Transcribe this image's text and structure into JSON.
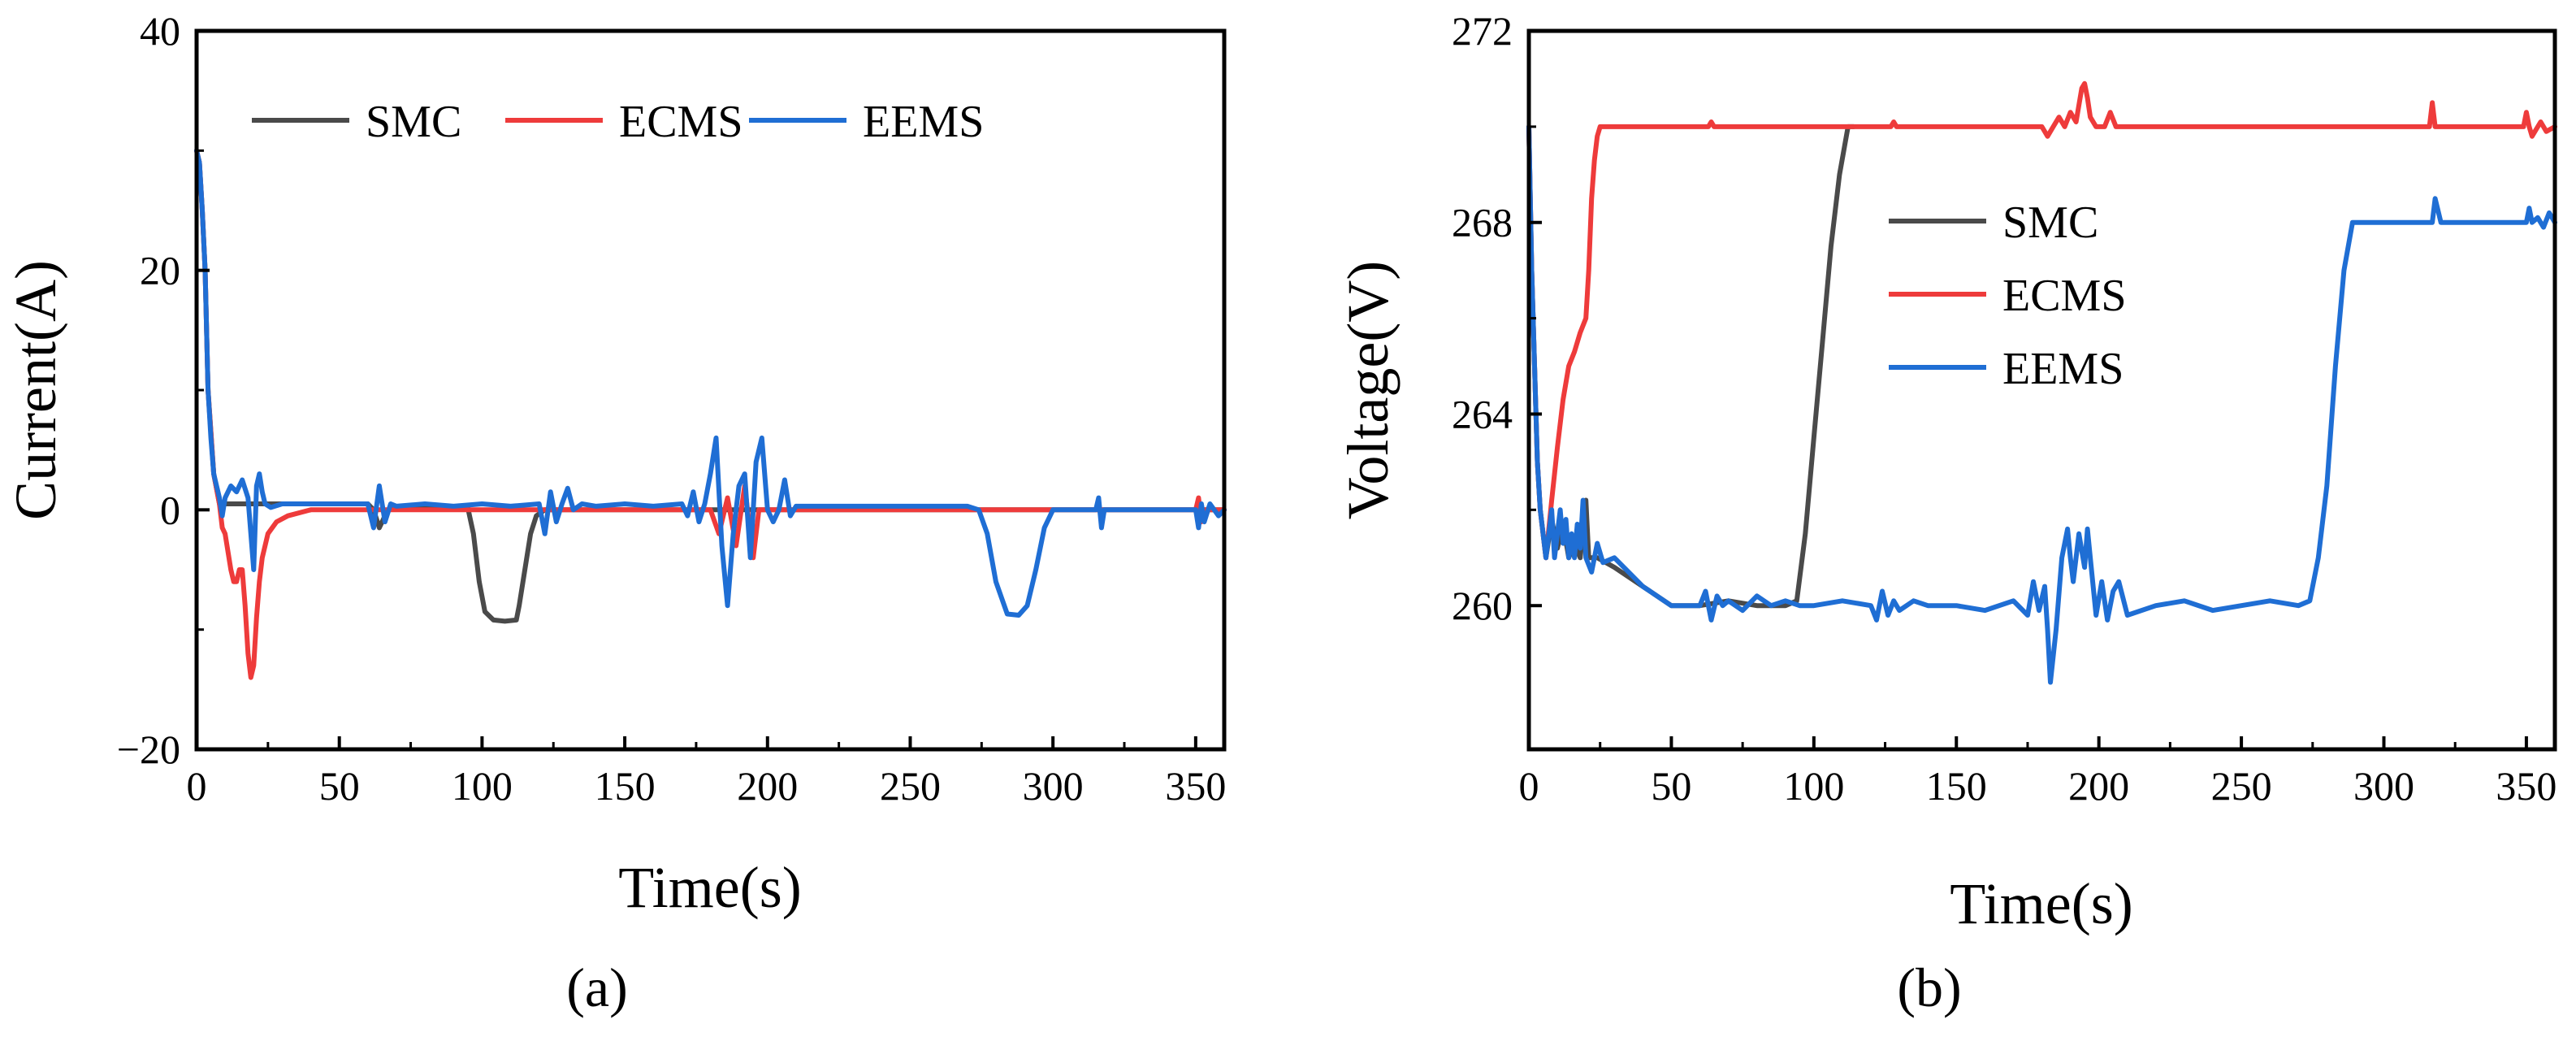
{
  "figure": {
    "panel_a_label": "(a)",
    "panel_b_label": "(b)"
  },
  "colors": {
    "SMC": "#4a4a4a",
    "ECMS": "#ee3b3b",
    "EEMS": "#1f6ed4"
  },
  "chart_data": [
    {
      "id": "a",
      "type": "line",
      "title": "",
      "xlabel": "Time(s)",
      "ylabel": "Current(A)",
      "xlim": [
        0,
        360
      ],
      "ylim": [
        -20,
        40
      ],
      "xticks": [
        0,
        50,
        100,
        150,
        200,
        250,
        300,
        350
      ],
      "yticks": [
        -20,
        0,
        20,
        40
      ],
      "ytick_labels": [
        "−20",
        "0",
        "20",
        "40"
      ],
      "legend": {
        "placement": "top",
        "layout": "horizontal"
      },
      "series": [
        {
          "name": "SMC",
          "color": "#4a4a4a",
          "x": [
            0,
            1,
            2,
            3,
            4,
            6,
            8,
            60,
            62,
            64,
            66,
            68,
            95,
            97,
            99,
            101,
            104,
            108,
            112,
            113,
            115,
            117,
            119,
            122,
            125,
            360
          ],
          "y": [
            30,
            29,
            25,
            20,
            10,
            3,
            0.5,
            0.5,
            0,
            -1.5,
            -0.5,
            0.2,
            0.2,
            -2,
            -6,
            -8.5,
            -9.2,
            -9.3,
            -9.2,
            -8,
            -5,
            -2,
            -0.5,
            0,
            0,
            0
          ]
        },
        {
          "name": "ECMS",
          "color": "#ee3b3b",
          "x": [
            0,
            1,
            2,
            3,
            4,
            6,
            8,
            9,
            10,
            12,
            13,
            14,
            15,
            16,
            17,
            18,
            19,
            20,
            21,
            22,
            23,
            25,
            28,
            32,
            40,
            60,
            180,
            183,
            186,
            189,
            192,
            195,
            197,
            200,
            205,
            350,
            351,
            352,
            353,
            360
          ],
          "y": [
            30,
            29,
            25,
            20,
            10,
            3,
            0.5,
            -1.5,
            -2,
            -5,
            -6,
            -6,
            -5,
            -5,
            -8,
            -12,
            -14,
            -13,
            -9,
            -6,
            -4,
            -2,
            -1,
            -0.5,
            0,
            0,
            0,
            -2,
            1,
            -3,
            2,
            -4,
            0,
            0,
            0,
            0,
            1,
            -1,
            0,
            0
          ]
        },
        {
          "name": "EEMS",
          "color": "#1f6ed4",
          "x": [
            0,
            1,
            2,
            3,
            4,
            5,
            6,
            7,
            8,
            9,
            10,
            12,
            14,
            16,
            18,
            20,
            21,
            22,
            23,
            24,
            26,
            30,
            40,
            60,
            62,
            64,
            66,
            68,
            70,
            80,
            90,
            100,
            110,
            120,
            122,
            124,
            126,
            128,
            130,
            132,
            135,
            140,
            150,
            160,
            170,
            172,
            174,
            176,
            178,
            180,
            182,
            184,
            186,
            188,
            190,
            192,
            194,
            196,
            198,
            200,
            202,
            204,
            206,
            208,
            210,
            220,
            230,
            240,
            250,
            260,
            270,
            274,
            277,
            280,
            284,
            288,
            291,
            294,
            297,
            300,
            305,
            310,
            315,
            316,
            317,
            318,
            320,
            330,
            340,
            350,
            351,
            352,
            353,
            355,
            358,
            360
          ],
          "y": [
            30,
            29,
            25,
            20,
            10,
            6,
            3,
            2,
            1,
            -0.5,
            1,
            2,
            1.5,
            2.5,
            1,
            -5,
            2,
            3,
            1.5,
            0.5,
            0.2,
            0.5,
            0.5,
            0.5,
            -1.5,
            2,
            -1,
            0.5,
            0.3,
            0.5,
            0.3,
            0.5,
            0.3,
            0.5,
            -2,
            1.5,
            -1,
            0.5,
            1.8,
            0,
            0.5,
            0.3,
            0.5,
            0.3,
            0.5,
            -0.5,
            1.5,
            -1,
            0.5,
            3,
            6,
            -3,
            -8,
            -2,
            2,
            3,
            -4,
            4,
            6,
            0,
            -1,
            0,
            2.5,
            -0.5,
            0.3,
            0.3,
            0.3,
            0.3,
            0.3,
            0.3,
            0.3,
            0,
            -2,
            -6,
            -8.7,
            -8.8,
            -8,
            -5,
            -1.5,
            0,
            0,
            0,
            0,
            1,
            -1.5,
            0,
            0,
            0,
            0,
            0,
            -1.5,
            0.5,
            -1,
            0.5,
            -0.5,
            0
          ]
        }
      ]
    },
    {
      "id": "b",
      "type": "line",
      "title": "",
      "xlabel": "Time(s)",
      "ylabel": "Voltage(V)",
      "xlim": [
        0,
        360
      ],
      "ylim": [
        257,
        272
      ],
      "xticks": [
        0,
        50,
        100,
        150,
        200,
        250,
        300,
        350
      ],
      "yticks": [
        260,
        264,
        268,
        272
      ],
      "ytick_labels": [
        "260",
        "264",
        "268",
        "272"
      ],
      "legend": {
        "placement": "center",
        "layout": "vertical"
      },
      "series": [
        {
          "name": "SMC",
          "color": "#4a4a4a",
          "x": [
            0,
            1,
            2,
            3,
            4,
            5,
            6,
            8,
            10,
            12,
            14,
            16,
            18,
            20,
            21,
            22,
            24,
            30,
            40,
            50,
            55,
            60,
            70,
            80,
            90,
            94,
            97,
            100,
            103,
            106,
            109,
            112,
            113,
            114
          ],
          "y": [
            270,
            267,
            265,
            263,
            262,
            261.5,
            261,
            261.8,
            261.2,
            261.7,
            261,
            261.3,
            261,
            262.2,
            261,
            261,
            261,
            260.8,
            260.4,
            260,
            260,
            260,
            260.1,
            260,
            260,
            260.1,
            261.5,
            263.5,
            265.5,
            267.5,
            269,
            270,
            270,
            270
          ]
        },
        {
          "name": "ECMS",
          "color": "#ee3b3b",
          "x": [
            0,
            1,
            2,
            3,
            4,
            5,
            6,
            8,
            10,
            12,
            14,
            16,
            18,
            20,
            21,
            22,
            23,
            24,
            25,
            26,
            30,
            60,
            63,
            64,
            65,
            100,
            127,
            128,
            129,
            180,
            182,
            184,
            186,
            188,
            190,
            192,
            194,
            195,
            196,
            197,
            199,
            202,
            204,
            206,
            208,
            300,
            316,
            317,
            318,
            320,
            340,
            349,
            350,
            351,
            352,
            355,
            357,
            360
          ],
          "y": [
            270,
            267,
            265,
            263,
            262,
            261.5,
            261,
            262.2,
            263.3,
            264.3,
            265,
            265.3,
            265.7,
            266,
            267,
            268.5,
            269.3,
            269.8,
            270,
            270,
            270,
            270,
            270,
            270.1,
            270,
            270,
            270,
            270.1,
            270,
            270,
            269.8,
            270,
            270.2,
            270,
            270.3,
            270.1,
            270.8,
            270.9,
            270.6,
            270.2,
            270,
            270,
            270.3,
            270,
            270,
            270,
            270,
            270.5,
            270,
            270,
            270,
            270,
            270.3,
            270,
            269.8,
            270.1,
            269.9,
            270
          ]
        },
        {
          "name": "EEMS",
          "color": "#1f6ed4",
          "x": [
            0,
            1,
            2,
            3,
            4,
            5,
            6,
            7,
            8,
            9,
            10,
            11,
            12,
            13,
            14,
            15,
            16,
            17,
            18,
            19,
            20,
            22,
            24,
            26,
            30,
            40,
            50,
            55,
            60,
            62,
            64,
            66,
            68,
            70,
            75,
            80,
            85,
            90,
            95,
            100,
            110,
            120,
            122,
            124,
            126,
            128,
            130,
            135,
            140,
            150,
            160,
            170,
            175,
            177,
            179,
            181,
            182,
            183,
            185,
            187,
            189,
            190,
            191,
            193,
            195,
            196,
            197,
            199,
            201,
            203,
            205,
            207,
            210,
            220,
            230,
            240,
            250,
            260,
            270,
            274,
            277,
            280,
            283,
            286,
            289,
            290,
            300,
            310,
            315,
            316,
            317,
            318,
            320,
            330,
            340,
            349,
            350,
            351,
            352,
            354,
            356,
            358,
            360
          ],
          "y": [
            270,
            267,
            265,
            263,
            262,
            261.5,
            261,
            261.5,
            262,
            261,
            261.5,
            262,
            261.3,
            261.8,
            261,
            261.5,
            261,
            261.7,
            261.2,
            262.2,
            261,
            260.7,
            261.3,
            260.9,
            261,
            260.4,
            260,
            260,
            260,
            260.3,
            259.7,
            260.2,
            260,
            260.1,
            259.9,
            260.2,
            260,
            260.1,
            260,
            260,
            260.1,
            260,
            259.7,
            260.3,
            259.8,
            260.1,
            259.9,
            260.1,
            260,
            260,
            259.9,
            260.1,
            259.8,
            260.5,
            259.9,
            260.4,
            259.5,
            258.4,
            259.5,
            261,
            261.6,
            261,
            260.5,
            261.5,
            260.8,
            261.6,
            261,
            259.8,
            260.5,
            259.7,
            260.3,
            260.5,
            259.8,
            260,
            260.1,
            259.9,
            260,
            260.1,
            260,
            260.1,
            261,
            262.5,
            265,
            267,
            268,
            268,
            268,
            268,
            268,
            268,
            268,
            268.5,
            268,
            268,
            268,
            268,
            268,
            268.3,
            268,
            268.1,
            267.9,
            268.2,
            268
          ]
        }
      ]
    }
  ]
}
